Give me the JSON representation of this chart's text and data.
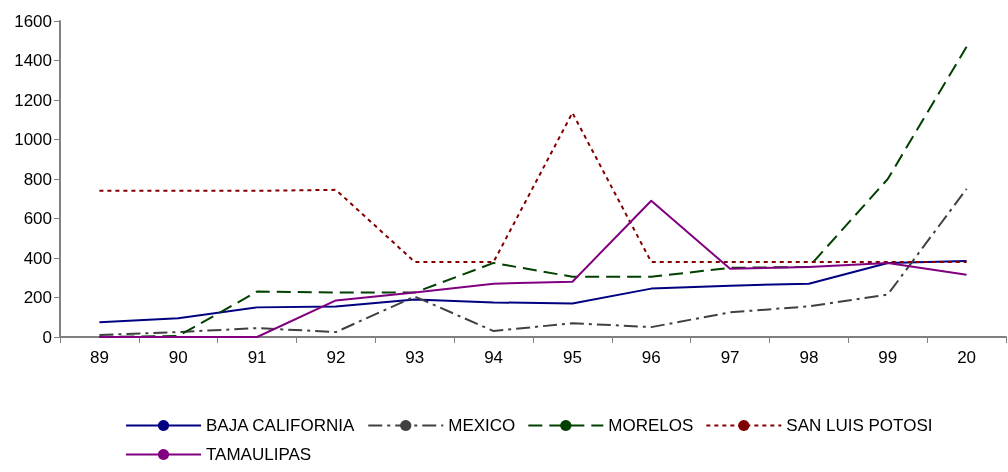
{
  "chart_data": {
    "type": "line",
    "categories": [
      "89",
      "90",
      "91",
      "92",
      "93",
      "94",
      "95",
      "96",
      "97",
      "98",
      "99",
      "20"
    ],
    "series": [
      {
        "name": "BAJA CALIFORNIA",
        "color": "#000080",
        "line_style": "solid",
        "values": [
          75,
          95,
          150,
          155,
          190,
          175,
          170,
          245,
          260,
          270,
          375,
          385
        ]
      },
      {
        "name": "MEXICO",
        "color": "#404040",
        "line_style": "dashdot",
        "values": [
          10,
          25,
          45,
          25,
          205,
          30,
          70,
          50,
          125,
          155,
          215,
          750
        ]
      },
      {
        "name": "MORELOS",
        "color": "#004000",
        "line_style": "dashed",
        "values": [
          0,
          5,
          230,
          225,
          225,
          375,
          305,
          305,
          350,
          355,
          800,
          1470
        ]
      },
      {
        "name": "SAN LUIS POTOSI",
        "color": "#800000",
        "line_style": "dotted",
        "values": [
          740,
          740,
          740,
          745,
          380,
          380,
          1135,
          380,
          380,
          380,
          380,
          380
        ]
      },
      {
        "name": "TAMAULIPAS",
        "color": "#800080",
        "line_style": "solid",
        "values": [
          0,
          0,
          0,
          185,
          225,
          270,
          280,
          690,
          345,
          355,
          375,
          315
        ]
      }
    ],
    "ylim": [
      0,
      1600
    ],
    "yticks": [
      0,
      200,
      400,
      600,
      800,
      1000,
      1200,
      1400,
      1600
    ],
    "grid": false,
    "legend": "bottom",
    "marker": "none"
  }
}
